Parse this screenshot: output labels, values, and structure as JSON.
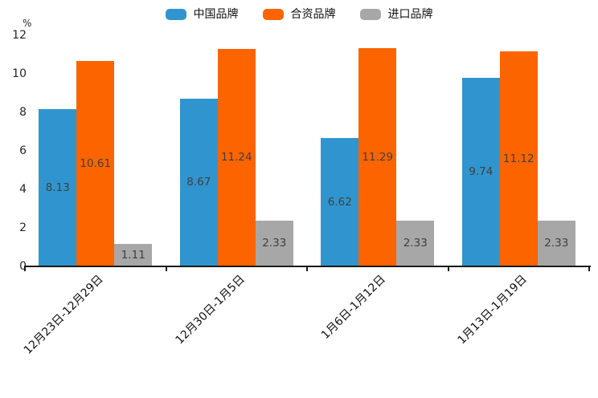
{
  "chart_data": {
    "type": "bar",
    "title": "",
    "unit_label": "%",
    "categories": [
      "12月23日-12月29日",
      "12月30日-1月5日",
      "1月6日-1月12日",
      "1月13日-1月19日"
    ],
    "series": [
      {
        "name": "中国品牌",
        "color": "#3095ce",
        "values": [
          8.13,
          8.67,
          6.62,
          9.74
        ]
      },
      {
        "name": "合资品牌",
        "color": "#fc6400",
        "values": [
          10.61,
          11.24,
          11.29,
          11.12
        ]
      },
      {
        "name": "进口品牌",
        "color": "#a7a7a7",
        "values": [
          1.11,
          2.33,
          2.33,
          2.33
        ]
      }
    ],
    "yticks": [
      0,
      2,
      4,
      6,
      8,
      10,
      12
    ],
    "ylim": [
      0,
      12
    ],
    "grid": false,
    "legend_position": "top",
    "value_labels": "inside-center",
    "value_label_color": "#404040",
    "axis_color": "#1a1a1a"
  }
}
